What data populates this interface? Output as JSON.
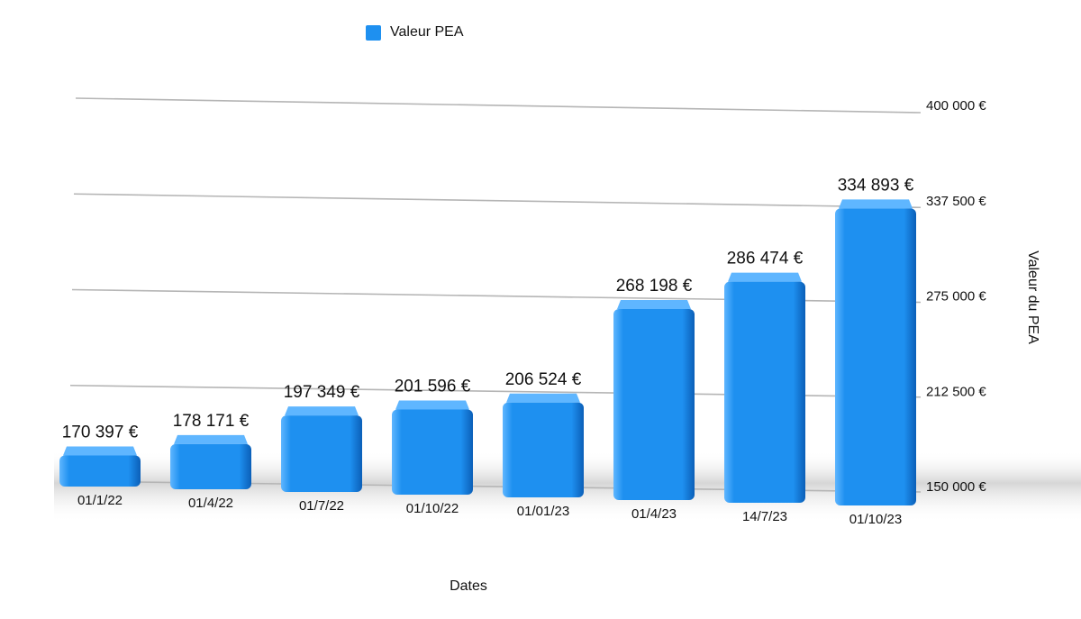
{
  "chart_data": {
    "type": "bar",
    "categories": [
      "01/1/22",
      "01/4/22",
      "01/7/22",
      "01/10/22",
      "01/01/23",
      "01/4/23",
      "14/7/23",
      "01/10/23"
    ],
    "series": [
      {
        "name": "Valeur PEA",
        "values": [
          170397,
          178171,
          197349,
          201596,
          206524,
          268198,
          286474,
          334893
        ],
        "labels": [
          "170 397 €",
          "178 171 €",
          "197 349 €",
          "201 596 €",
          "206 524 €",
          "268 198 €",
          "286 474 €",
          "334 893 €"
        ]
      }
    ],
    "xlabel": "Dates",
    "ylabel": "Valeur du PEA",
    "ylim": [
      150000,
      400000
    ],
    "yticks": [
      150000,
      212500,
      275000,
      337500,
      400000
    ],
    "ytick_labels": [
      "150 000 €",
      "212 500 €",
      "275 000 €",
      "337 500 €",
      "400 000 €"
    ],
    "grid": true,
    "legend_position": "top",
    "colors": {
      "bar": "#1e90f0",
      "bar_dark": "#0b5fb8",
      "bar_light": "#5fb6ff",
      "grid": "#b5b5b5"
    }
  }
}
